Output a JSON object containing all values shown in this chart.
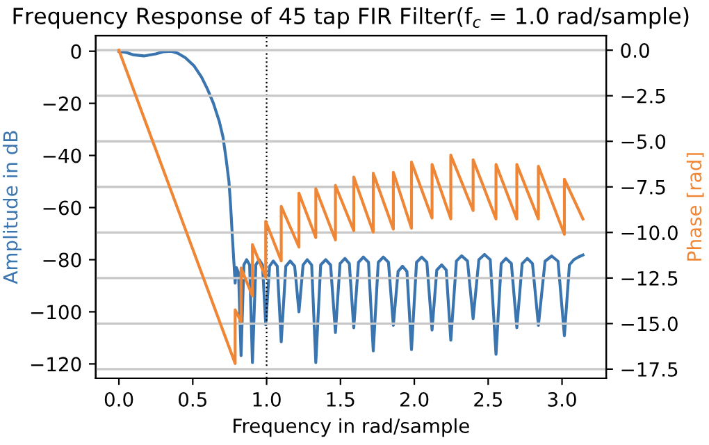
{
  "chart_data": {
    "type": "line",
    "title": "Frequency Response of 45 tap FIR Filter(f$_{c}$ = 1.0 rad/sample)",
    "xlabel": "Frequency in rad/sample",
    "ylabel": "Amplitude in dB",
    "y2label": "Phase [rad]",
    "series": [
      {
        "color": "#3a75af",
        "axis": "y",
        "x": [
          0,
          0.05,
          0.1,
          0.17,
          0.25,
          0.3,
          0.355,
          0.4,
          0.45,
          0.51,
          0.56,
          0.6,
          0.64,
          0.68,
          0.705,
          0.725,
          0.745,
          0.756,
          0.77,
          0.787,
          0.795,
          0.81,
          0.827,
          0.846,
          0.865,
          0.885,
          0.904,
          0.927,
          0.95,
          0.972,
          0.994,
          1.02,
          1.045,
          1.072,
          1.099,
          1.13,
          1.16,
          1.19,
          1.219,
          1.247,
          1.275,
          1.305,
          1.333,
          1.366,
          1.4,
          1.433,
          1.466,
          1.497,
          1.53,
          1.56,
          1.59,
          1.622,
          1.655,
          1.69,
          1.722,
          1.756,
          1.79,
          1.825,
          1.858,
          1.89,
          1.92,
          1.95,
          1.981,
          2.015,
          2.05,
          2.085,
          2.12,
          2.152,
          2.185,
          2.216,
          2.247,
          2.285,
          2.32,
          2.36,
          2.398,
          2.437,
          2.475,
          2.514,
          2.553,
          2.588,
          2.62,
          2.657,
          2.694,
          2.73,
          2.765,
          2.8,
          2.84,
          2.885,
          2.93,
          2.973,
          3.016,
          3.05,
          3.08,
          3.11,
          3.1416
        ],
        "values": [
          0,
          -0.5,
          -1.4,
          -1.8,
          -1.0,
          -0.2,
          0,
          -0.8,
          -2.5,
          -5.7,
          -10,
          -14.6,
          -20,
          -27,
          -33,
          -41,
          -50,
          -59,
          -73,
          -89,
          -83,
          -85,
          -116.8,
          -82,
          -80,
          -82,
          -119.5,
          -82,
          -80,
          -82,
          -105,
          -82.5,
          -80.5,
          -82.5,
          -111.5,
          -82.5,
          -80.5,
          -82.5,
          -100,
          -82,
          -80,
          -82,
          -119.5,
          -82,
          -80,
          -82,
          -107.9,
          -81.5,
          -79.5,
          -81.5,
          -106.1,
          -81,
          -79,
          -81,
          -115,
          -81,
          -79,
          -81,
          -105.2,
          -84.5,
          -82.5,
          -84.5,
          -114.5,
          -81,
          -79,
          -81,
          -107,
          -84,
          -82,
          -84,
          -110.9,
          -80.5,
          -78.5,
          -80.5,
          -102.6,
          -80,
          -78,
          -80,
          -116.3,
          -81.5,
          -79.5,
          -81.5,
          -106.1,
          -81.5,
          -79.5,
          -81.5,
          -105.2,
          -80.6,
          -78.6,
          -80.6,
          -109.2,
          -82,
          -80,
          -79,
          -78.2
        ]
      },
      {
        "color": "#ef8636",
        "axis": "y2",
        "x": [
          0,
          0.787,
          0.787,
          0.827,
          0.827,
          0.904,
          0.904,
          0.994,
          0.994,
          1.099,
          1.099,
          1.219,
          1.219,
          1.333,
          1.333,
          1.466,
          1.466,
          1.59,
          1.59,
          1.722,
          1.722,
          1.858,
          1.858,
          1.981,
          1.981,
          2.12,
          2.12,
          2.247,
          2.247,
          2.398,
          2.398,
          2.553,
          2.553,
          2.694,
          2.694,
          2.84,
          2.84,
          3.016,
          3.016,
          3.1416
        ],
        "values": [
          0,
          -17.19,
          -14.25,
          -14.89,
          -11.95,
          -13.48,
          -10.67,
          -12.46,
          -9.39,
          -11.56,
          -8.57,
          -10.8,
          -7.85,
          -10.28,
          -7.6,
          -10.41,
          -7.42,
          -9.9,
          -6.96,
          -9.98,
          -6.75,
          -9.82,
          -6.7,
          -9.77,
          -6.14,
          -9.21,
          -6.27,
          -9.26,
          -5.76,
          -8.8,
          -6.01,
          -9.26,
          -6.27,
          -9.26,
          -6.27,
          -9.26,
          -6.37,
          -10.1,
          -7.08,
          -9.26
        ]
      }
    ],
    "xlim": [
      -0.157,
      3.299
    ],
    "xticks": [
      {
        "value": 0,
        "label": "0.0"
      },
      {
        "value": 0.5,
        "label": "0.5"
      },
      {
        "value": 1,
        "label": "1.0"
      },
      {
        "value": 1.5,
        "label": "1.5"
      },
      {
        "value": 2,
        "label": "2.0"
      },
      {
        "value": 2.5,
        "label": "2.5"
      },
      {
        "value": 3,
        "label": "3.0"
      }
    ],
    "ylim": [
      -125.5,
      6
    ],
    "yticks": [
      0,
      -20,
      -40,
      -60,
      -80,
      -100,
      -120
    ],
    "y2lim": [
      -18.0,
      0.8
    ],
    "y2ticks": [
      {
        "value": 0,
        "label": "0.0"
      },
      {
        "value": -2.5,
        "label": "−2.5"
      },
      {
        "value": -5,
        "label": "−5.0"
      },
      {
        "value": -7.5,
        "label": "−7.5"
      },
      {
        "value": -10,
        "label": "−10.0"
      },
      {
        "value": -12.5,
        "label": "−12.5"
      },
      {
        "value": -15,
        "label": "−15.0"
      },
      {
        "value": -17.5,
        "label": "−17.5"
      }
    ],
    "ref_lines": [
      {
        "axis": "x",
        "value": 1.0,
        "color": "#000000",
        "line_style": "dotted"
      }
    ],
    "grid": "y",
    "legend": false
  }
}
